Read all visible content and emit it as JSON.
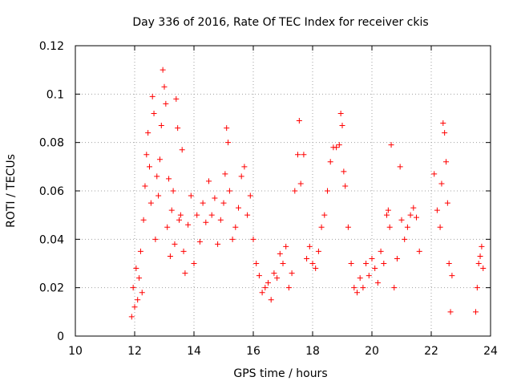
{
  "chart_data": {
    "type": "scatter",
    "title": "Day 336 of 2016, Rate Of TEC Index for receiver ckis",
    "xlabel": "GPS time / hours",
    "ylabel": "ROTI / TECUs",
    "xlim": [
      10,
      24
    ],
    "ylim": [
      0,
      0.12
    ],
    "x_ticks": [
      10,
      12,
      14,
      16,
      18,
      20,
      22,
      24
    ],
    "x_tick_labels": [
      "10",
      "12",
      "14",
      "16",
      "18",
      "20",
      "22",
      "24"
    ],
    "y_ticks": [
      0,
      0.02,
      0.04,
      0.06,
      0.08,
      0.1,
      0.12
    ],
    "y_tick_labels": [
      "0",
      "0.02",
      "0.04",
      "0.06",
      "0.08",
      "0.1",
      "0.12"
    ],
    "grid": true,
    "legend": "none",
    "marker": "plus",
    "color": "#ff0000",
    "series": [
      {
        "name": "ROTI",
        "points": [
          [
            11.9,
            0.008
          ],
          [
            11.95,
            0.02
          ],
          [
            12.0,
            0.012
          ],
          [
            12.05,
            0.028
          ],
          [
            12.1,
            0.015
          ],
          [
            12.15,
            0.024
          ],
          [
            12.2,
            0.035
          ],
          [
            12.25,
            0.018
          ],
          [
            12.3,
            0.048
          ],
          [
            12.35,
            0.062
          ],
          [
            12.4,
            0.075
          ],
          [
            12.45,
            0.084
          ],
          [
            12.5,
            0.07
          ],
          [
            12.55,
            0.055
          ],
          [
            12.6,
            0.099
          ],
          [
            12.65,
            0.092
          ],
          [
            12.7,
            0.04
          ],
          [
            12.75,
            0.066
          ],
          [
            12.8,
            0.058
          ],
          [
            12.85,
            0.073
          ],
          [
            12.9,
            0.087
          ],
          [
            12.95,
            0.11
          ],
          [
            13.0,
            0.103
          ],
          [
            13.05,
            0.096
          ],
          [
            13.1,
            0.045
          ],
          [
            13.15,
            0.065
          ],
          [
            13.2,
            0.033
          ],
          [
            13.25,
            0.052
          ],
          [
            13.3,
            0.06
          ],
          [
            13.35,
            0.038
          ],
          [
            13.4,
            0.098
          ],
          [
            13.45,
            0.086
          ],
          [
            13.5,
            0.048
          ],
          [
            13.55,
            0.05
          ],
          [
            13.6,
            0.077
          ],
          [
            13.65,
            0.035
          ],
          [
            13.7,
            0.026
          ],
          [
            13.8,
            0.046
          ],
          [
            13.9,
            0.058
          ],
          [
            14.0,
            0.03
          ],
          [
            14.1,
            0.05
          ],
          [
            14.2,
            0.039
          ],
          [
            14.3,
            0.055
          ],
          [
            14.4,
            0.047
          ],
          [
            14.5,
            0.064
          ],
          [
            14.6,
            0.05
          ],
          [
            14.7,
            0.057
          ],
          [
            14.8,
            0.038
          ],
          [
            14.9,
            0.048
          ],
          [
            15.0,
            0.055
          ],
          [
            15.05,
            0.067
          ],
          [
            15.1,
            0.086
          ],
          [
            15.15,
            0.08
          ],
          [
            15.2,
            0.06
          ],
          [
            15.3,
            0.04
          ],
          [
            15.4,
            0.045
          ],
          [
            15.5,
            0.053
          ],
          [
            15.6,
            0.066
          ],
          [
            15.7,
            0.07
          ],
          [
            15.8,
            0.05
          ],
          [
            15.9,
            0.058
          ],
          [
            16.0,
            0.04
          ],
          [
            16.1,
            0.03
          ],
          [
            16.2,
            0.025
          ],
          [
            16.3,
            0.018
          ],
          [
            16.4,
            0.02
          ],
          [
            16.5,
            0.022
          ],
          [
            16.6,
            0.015
          ],
          [
            16.7,
            0.026
          ],
          [
            16.8,
            0.024
          ],
          [
            16.9,
            0.034
          ],
          [
            17.0,
            0.03
          ],
          [
            17.1,
            0.037
          ],
          [
            17.2,
            0.02
          ],
          [
            17.3,
            0.026
          ],
          [
            17.4,
            0.06
          ],
          [
            17.5,
            0.075
          ],
          [
            17.55,
            0.089
          ],
          [
            17.6,
            0.063
          ],
          [
            17.7,
            0.075
          ],
          [
            17.8,
            0.032
          ],
          [
            17.9,
            0.037
          ],
          [
            18.0,
            0.03
          ],
          [
            18.1,
            0.028
          ],
          [
            18.2,
            0.035
          ],
          [
            18.3,
            0.045
          ],
          [
            18.4,
            0.05
          ],
          [
            18.5,
            0.06
          ],
          [
            18.6,
            0.072
          ],
          [
            18.7,
            0.078
          ],
          [
            18.8,
            0.078
          ],
          [
            18.9,
            0.079
          ],
          [
            18.95,
            0.092
          ],
          [
            19.0,
            0.087
          ],
          [
            19.05,
            0.068
          ],
          [
            19.1,
            0.062
          ],
          [
            19.2,
            0.045
          ],
          [
            19.3,
            0.03
          ],
          [
            19.4,
            0.02
          ],
          [
            19.5,
            0.018
          ],
          [
            19.6,
            0.024
          ],
          [
            19.7,
            0.02
          ],
          [
            19.8,
            0.03
          ],
          [
            19.9,
            0.025
          ],
          [
            20.0,
            0.032
          ],
          [
            20.1,
            0.028
          ],
          [
            20.2,
            0.022
          ],
          [
            20.3,
            0.035
          ],
          [
            20.4,
            0.03
          ],
          [
            20.5,
            0.05
          ],
          [
            20.55,
            0.052
          ],
          [
            20.6,
            0.045
          ],
          [
            20.65,
            0.079
          ],
          [
            20.75,
            0.02
          ],
          [
            20.85,
            0.032
          ],
          [
            20.95,
            0.07
          ],
          [
            21.0,
            0.048
          ],
          [
            21.1,
            0.04
          ],
          [
            21.2,
            0.045
          ],
          [
            21.3,
            0.05
          ],
          [
            21.4,
            0.053
          ],
          [
            21.5,
            0.049
          ],
          [
            21.6,
            0.035
          ],
          [
            22.1,
            0.067
          ],
          [
            22.2,
            0.052
          ],
          [
            22.3,
            0.045
          ],
          [
            22.35,
            0.063
          ],
          [
            22.4,
            0.088
          ],
          [
            22.45,
            0.084
          ],
          [
            22.5,
            0.072
          ],
          [
            22.55,
            0.055
          ],
          [
            22.6,
            0.03
          ],
          [
            22.65,
            0.01
          ],
          [
            22.7,
            0.025
          ],
          [
            23.5,
            0.01
          ],
          [
            23.55,
            0.02
          ],
          [
            23.6,
            0.03
          ],
          [
            23.65,
            0.033
          ],
          [
            23.7,
            0.037
          ],
          [
            23.75,
            0.028
          ]
        ]
      }
    ]
  }
}
